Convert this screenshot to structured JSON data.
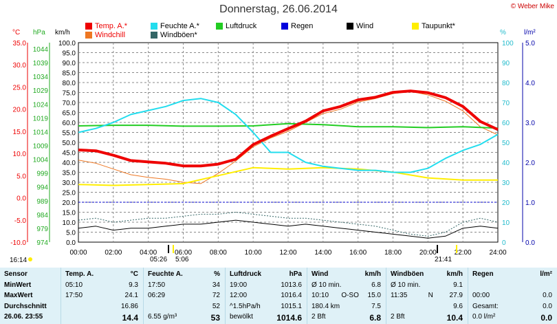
{
  "header": {
    "title": "Donnerstag, 26.06.2014",
    "copyright": "© Weber Mike"
  },
  "legend": [
    {
      "label": "Temp. A.*",
      "color": "#ee0000",
      "col": 0,
      "row": 0
    },
    {
      "label": "Feuchte A.*",
      "color": "#22ddee",
      "col": 1,
      "row": 0
    },
    {
      "label": "Luftdruck",
      "color": "#22cc22",
      "col": 2,
      "row": 0
    },
    {
      "label": "Regen",
      "color": "#0000dd",
      "col": 3,
      "row": 0
    },
    {
      "label": "Wind",
      "color": "#000000",
      "col": 4,
      "row": 0
    },
    {
      "label": "Taupunkt*",
      "color": "#ffee00",
      "col": 5,
      "row": 0
    },
    {
      "label": "Windchill",
      "color": "#ee7722",
      "col": 0,
      "row": 1
    },
    {
      "label": "Windböen*",
      "color": "#336666",
      "col": 1,
      "row": 1
    }
  ],
  "units": {
    "temp": "°C",
    "pressure": "hPa",
    "wind": "km/h",
    "humidity": "%",
    "rain": "l/m²"
  },
  "chart_data": {
    "type": "line",
    "x_labels": [
      "00:00",
      "02:00",
      "04:00",
      "06:00",
      "08:00",
      "10:00",
      "12:00",
      "14:00",
      "16:00",
      "18:00",
      "20:00",
      "22:00",
      "24:00"
    ],
    "axes": {
      "temp_c": [
        "35.0",
        "30.0",
        "25.0",
        "20.0",
        "15.0",
        "10.0",
        "5.0",
        "0.0",
        "-5.0",
        "-10.0"
      ],
      "pressure_hpa": [
        "1044",
        "1039",
        "1034",
        "1029",
        "1024",
        "1019",
        "1014",
        "1009",
        "1004",
        "999",
        "994",
        "989",
        "984",
        "979",
        "974"
      ],
      "wind_kmh": [
        "100.0",
        "95.0",
        "90.0",
        "85.0",
        "80.0",
        "75.0",
        "70.0",
        "65.0",
        "60.0",
        "55.0",
        "50.0",
        "45.0",
        "40.0",
        "35.0",
        "30.0",
        "25.0",
        "20.0",
        "15.0",
        "10.0",
        "5.0",
        "0.0"
      ],
      "humidity_pct": [
        "100",
        "90",
        "80",
        "70",
        "60",
        "50",
        "40",
        "30",
        "20",
        "10",
        "0"
      ],
      "rain_lm2": [
        "5.0",
        "4.0",
        "3.0",
        "2.0",
        "1.0",
        "0.0"
      ]
    },
    "ylim_temp": [
      -10,
      35
    ],
    "ylim_humidity": [
      0,
      100
    ],
    "ylim_pressure": [
      974,
      1044
    ],
    "ylim_wind": [
      0,
      100
    ],
    "ylim_rain": [
      0,
      5
    ],
    "series": [
      {
        "name": "Temp. A.*",
        "unit": "°C",
        "color": "#ee0000",
        "x": [
          0,
          1,
          2,
          3,
          4,
          5,
          6,
          7,
          8,
          9,
          10,
          11,
          12,
          13,
          14,
          15,
          16,
          17,
          18,
          19,
          20,
          21,
          22,
          23,
          24
        ],
        "values": [
          10.8,
          10.6,
          9.6,
          8.4,
          8.1,
          7.8,
          7.2,
          7.2,
          7.6,
          8.7,
          12.0,
          13.9,
          15.6,
          17.3,
          19.6,
          20.6,
          22.1,
          22.7,
          23.8,
          24.1,
          23.7,
          22.6,
          20.6,
          17.2,
          15.4
        ]
      },
      {
        "name": "Windchill",
        "unit": "°C",
        "color": "#ee7722",
        "x": [
          0,
          1,
          2,
          3,
          4,
          5,
          6,
          7,
          8,
          9,
          10,
          11,
          12,
          13,
          14,
          15,
          16,
          17,
          18,
          19,
          20,
          21,
          22,
          23,
          24
        ],
        "values": [
          8.5,
          7.8,
          6.5,
          5.2,
          4.6,
          4.2,
          3.5,
          3.2,
          5.5,
          8.3,
          11.5,
          13.5,
          15.0,
          17.0,
          19.0,
          20.0,
          21.6,
          22.4,
          23.5,
          24.0,
          23.2,
          21.8,
          19.6,
          16.0,
          14.2
        ]
      },
      {
        "name": "Feuchte A.*",
        "unit": "%",
        "color": "#22ddee",
        "x": [
          0,
          1,
          2,
          3,
          4,
          5,
          6,
          7,
          8,
          9,
          10,
          11,
          12,
          13,
          14,
          15,
          16,
          17,
          18,
          19,
          20,
          21,
          22,
          23,
          24
        ],
        "values": [
          55,
          57,
          60,
          64,
          66,
          68,
          71,
          72,
          70,
          64,
          55,
          45,
          45,
          40,
          38,
          37,
          36,
          36,
          35,
          35,
          37,
          42,
          46,
          49,
          54
        ]
      },
      {
        "name": "Luftdruck",
        "unit": "hPa",
        "color": "#22cc22",
        "x": [
          0,
          2,
          4,
          6,
          8,
          10,
          12,
          14,
          16,
          18,
          20,
          22,
          24
        ],
        "values": [
          1014.8,
          1015.0,
          1015.0,
          1014.7,
          1014.7,
          1014.8,
          1015.6,
          1015.2,
          1014.5,
          1014.5,
          1014.2,
          1014.5,
          1014.0
        ]
      },
      {
        "name": "Taupunkt*",
        "unit": "°C",
        "color": "#ffee00",
        "x": [
          0,
          2,
          4,
          6,
          8,
          10,
          12,
          14,
          16,
          18,
          20,
          22,
          24
        ],
        "values": [
          3.0,
          2.8,
          3.0,
          3.2,
          5.0,
          6.8,
          6.5,
          6.8,
          6.5,
          5.8,
          4.5,
          4.0,
          4.0
        ]
      },
      {
        "name": "Wind",
        "unit": "km/h",
        "color": "#000000",
        "x": [
          0,
          1,
          2,
          3,
          4,
          5,
          6,
          7,
          8,
          9,
          10,
          11,
          12,
          13,
          14,
          15,
          16,
          17,
          18,
          19,
          20,
          21,
          22,
          23,
          24
        ],
        "values": [
          7,
          8,
          6,
          7,
          7,
          8,
          9,
          9,
          10,
          11,
          10,
          9,
          8,
          9,
          8,
          7,
          6,
          5,
          4,
          3,
          2,
          3,
          7,
          8,
          7
        ]
      },
      {
        "name": "Windböen*",
        "unit": "km/h",
        "color": "#336666",
        "x": [
          0,
          1,
          2,
          3,
          4,
          5,
          6,
          7,
          8,
          9,
          10,
          11,
          12,
          13,
          14,
          15,
          16,
          17,
          18,
          19,
          20,
          21,
          22,
          23,
          24
        ],
        "values": [
          11,
          12,
          10,
          11,
          12,
          12,
          13,
          14,
          14,
          15,
          14,
          13,
          12,
          12,
          11,
          10,
          9,
          8,
          6,
          4,
          3,
          5,
          10,
          12,
          10
        ]
      }
    ],
    "regen_baseline_lm2": 1.0,
    "sunrise": "05:26",
    "sunset": "21:41",
    "time_marker_left": "16:14",
    "sunrise2": "5:06"
  },
  "footer": {
    "cols": [
      {
        "header": [
          "Sensor",
          "",
          ""
        ],
        "rows": [
          [
            "MinWert",
            "",
            ""
          ],
          [
            "MaxWert",
            "",
            ""
          ],
          [
            "Durchschnitt",
            "",
            ""
          ],
          [
            "26.06. 23:55",
            "",
            ""
          ]
        ]
      },
      {
        "header": [
          "Temp. A.",
          "",
          "°C"
        ],
        "rows": [
          [
            "05:10",
            "",
            "9.3"
          ],
          [
            "17:50",
            "",
            "24.1"
          ],
          [
            "",
            "",
            "16.86"
          ],
          [
            "",
            "",
            "14.4"
          ]
        ]
      },
      {
        "header": [
          "Feuchte A.",
          "",
          "%"
        ],
        "rows": [
          [
            "17:50",
            "",
            "34"
          ],
          [
            "06:29",
            "",
            "72"
          ],
          [
            "",
            "",
            "52"
          ],
          [
            "6.55 g/m³",
            "",
            "53"
          ]
        ]
      },
      {
        "header": [
          "Luftdruck",
          "",
          "hPa"
        ],
        "rows": [
          [
            "19:00",
            "",
            "1013.6"
          ],
          [
            "12:00",
            "",
            "1016.4"
          ],
          [
            "^1.5hPa/h",
            "",
            "1015.1"
          ],
          [
            "bewölkt",
            "",
            "1014.6"
          ]
        ]
      },
      {
        "header": [
          "Wind",
          "",
          "km/h"
        ],
        "rows": [
          [
            "Ø 10 min.",
            "",
            "6.8"
          ],
          [
            "10:10",
            "O-SO",
            "15.0"
          ],
          [
            "180.4 km",
            "",
            "7.5"
          ],
          [
            "2 Bft",
            "",
            "6.8"
          ]
        ]
      },
      {
        "header": [
          "Windböen",
          "",
          "km/h"
        ],
        "rows": [
          [
            "Ø 10 min.",
            "",
            "9.1"
          ],
          [
            "11:35",
            "N",
            "27.9"
          ],
          [
            "",
            "",
            "9.6"
          ],
          [
            "2 Bft",
            "",
            "10.4"
          ]
        ]
      },
      {
        "header": [
          "Regen",
          "",
          "l/m²"
        ],
        "rows": [
          [
            "",
            "",
            ""
          ],
          [
            "00:00",
            "",
            "0.0"
          ],
          [
            "Gesamt:",
            "",
            "0.0"
          ],
          [
            "0.0 l/m²",
            "",
            "0.0"
          ]
        ]
      }
    ]
  }
}
